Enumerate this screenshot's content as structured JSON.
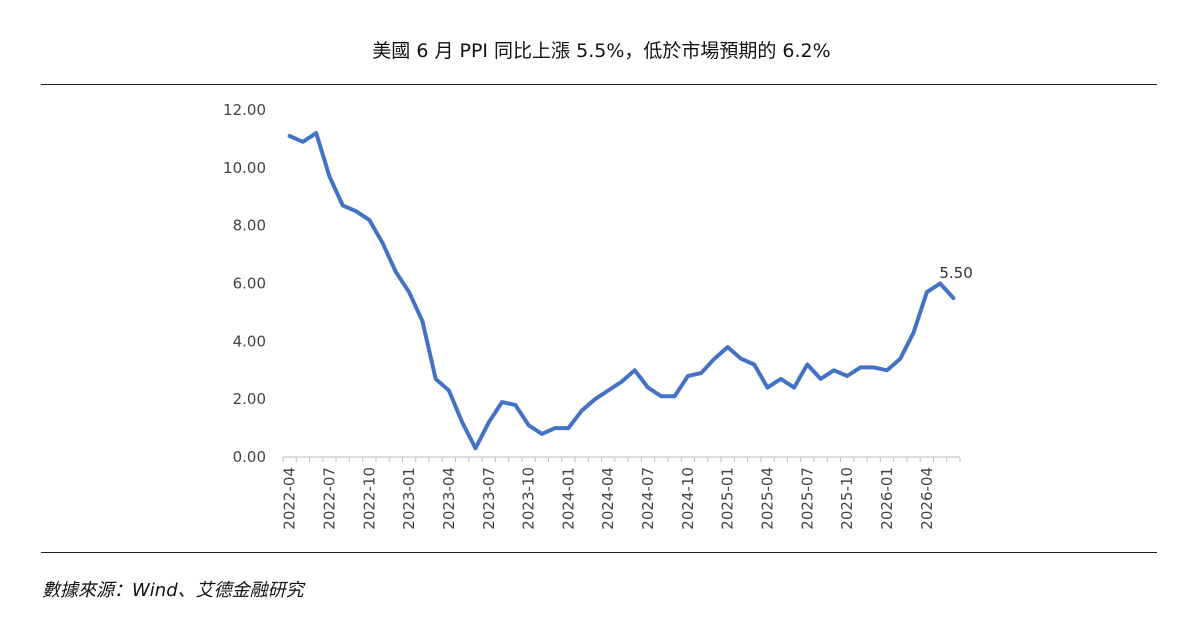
{
  "title": "美國 6 月 PPI 同比上漲 5.5%，低於市場預期的 6.2%",
  "source": "數據來源：Wind、艾德金融研究",
  "chart_data": {
    "type": "line",
    "title": "美國 6 月 PPI 同比上漲 5.5%，低於市場預期的 6.2%",
    "xlabel": "",
    "ylabel": "",
    "ylim": [
      0,
      12
    ],
    "yticks": [
      "0.00",
      "2.00",
      "4.00",
      "6.00",
      "8.00",
      "10.00",
      "12.00"
    ],
    "xtick_labels": [
      "2022-04",
      "2022-07",
      "2022-10",
      "2023-01",
      "2023-04",
      "2023-07",
      "2023-10",
      "2024-01",
      "2024-04",
      "2024-07",
      "2024-10",
      "2025-01",
      "2025-04",
      "2025-07",
      "2025-10",
      "2026-01",
      "2026-04"
    ],
    "grid": false,
    "legend": "none",
    "line_color": "#4472C4",
    "x": [
      "2022-04",
      "2022-05",
      "2022-06",
      "2022-07",
      "2022-08",
      "2022-09",
      "2022-10",
      "2022-11",
      "2022-12",
      "2023-01",
      "2023-02",
      "2023-03",
      "2023-04",
      "2023-05",
      "2023-06",
      "2023-07",
      "2023-08",
      "2023-09",
      "2023-10",
      "2023-11",
      "2023-12",
      "2024-01",
      "2024-02",
      "2024-03",
      "2024-04",
      "2024-05",
      "2024-06",
      "2024-07",
      "2024-08",
      "2024-09",
      "2024-10",
      "2024-11",
      "2024-12",
      "2025-01",
      "2025-02",
      "2025-03",
      "2025-04",
      "2025-05",
      "2025-06",
      "2025-07",
      "2025-08",
      "2025-09",
      "2025-10",
      "2025-11",
      "2025-12",
      "2026-01",
      "2026-02",
      "2026-03",
      "2026-04",
      "2026-05",
      "2026-06"
    ],
    "series": [
      {
        "values": [
          11.1,
          10.9,
          11.2,
          9.7,
          8.7,
          8.5,
          8.2,
          7.4,
          6.4,
          5.7,
          4.7,
          2.7,
          2.3,
          1.2,
          0.3,
          1.2,
          1.9,
          1.8,
          1.1,
          0.8,
          1.0,
          1.0,
          1.6,
          2.0,
          2.3,
          2.6,
          3.0,
          2.4,
          2.1,
          2.1,
          2.8,
          2.9,
          3.4,
          3.8,
          3.4,
          3.2,
          2.4,
          2.7,
          2.4,
          3.2,
          2.7,
          3.0,
          2.8,
          3.1,
          3.1,
          3.0,
          3.4,
          4.3,
          5.7,
          6.0,
          5.5
        ]
      }
    ],
    "data_labels": [
      {
        "x": "2026-06",
        "text": "5.50"
      }
    ]
  }
}
